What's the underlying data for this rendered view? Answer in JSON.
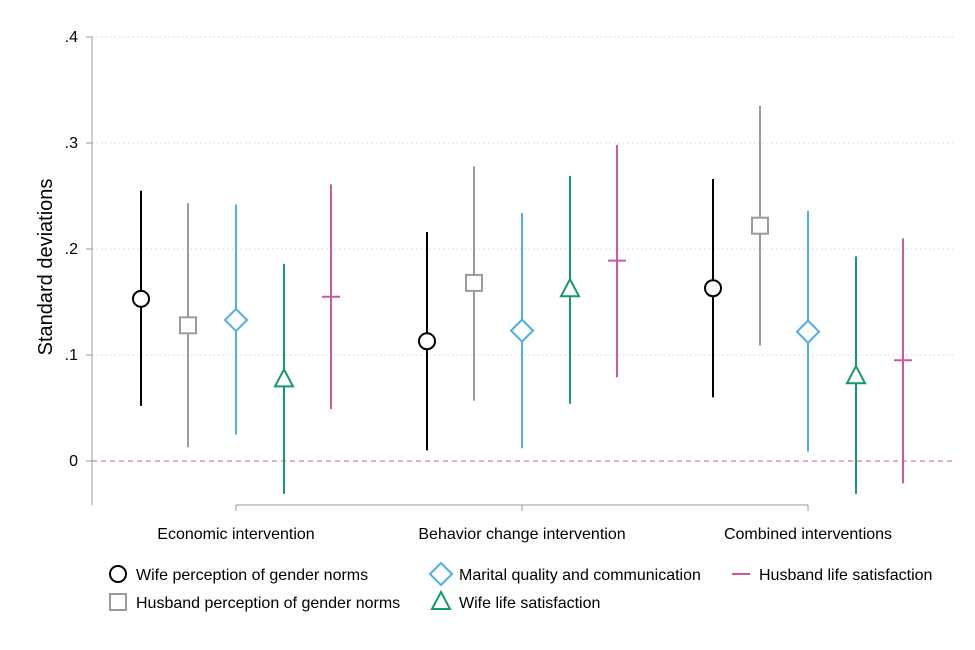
{
  "chart_data": {
    "type": "scatter",
    "subtype": "coefficient-plot-with-confidence-intervals",
    "ylabel": "Standard deviations",
    "ylim": [
      -0.03,
      0.4
    ],
    "y_ticks": [
      {
        "value": 0,
        "label": "0"
      },
      {
        "value": 0.1,
        "label": ".1"
      },
      {
        "value": 0.2,
        "label": ".2"
      },
      {
        "value": 0.3,
        "label": ".3"
      },
      {
        "value": 0.4,
        "label": ".4"
      }
    ],
    "grid": "horizontal dotted",
    "reference_line": {
      "y": 0,
      "style": "dashed",
      "color": "#c75b9b"
    },
    "categories": [
      "Economic intervention",
      "Behavior change intervention",
      "Combined interventions"
    ],
    "series": [
      {
        "name": "Wife perception of gender norms",
        "marker": "circle",
        "color": "#000000",
        "estimates": [
          0.153,
          0.113,
          0.163
        ],
        "ci_low": [
          0.052,
          0.01,
          0.06
        ],
        "ci_high": [
          0.255,
          0.216,
          0.266
        ]
      },
      {
        "name": "Husband perception of gender norms",
        "marker": "square",
        "color": "#9b9b9b",
        "estimates": [
          0.128,
          0.168,
          0.222
        ],
        "ci_low": [
          0.013,
          0.057,
          0.109
        ],
        "ci_high": [
          0.243,
          0.278,
          0.335
        ]
      },
      {
        "name": "Marital quality and communication",
        "marker": "diamond",
        "color": "#4faee3",
        "estimates": [
          0.133,
          0.123,
          0.122
        ],
        "ci_low": [
          0.025,
          0.012,
          0.009
        ],
        "ci_high": [
          0.242,
          0.234,
          0.236
        ]
      },
      {
        "name": "Wife life satisfaction",
        "marker": "triangle",
        "color": "#14996e",
        "estimates": [
          0.077,
          0.162,
          0.08
        ],
        "ci_low": [
          -0.031,
          0.054,
          -0.031
        ],
        "ci_high": [
          0.186,
          0.269,
          0.193
        ]
      },
      {
        "name": "Husband life satisfaction",
        "marker": "plus",
        "color": "#c75b9b",
        "estimates": [
          0.155,
          0.189,
          0.095
        ],
        "ci_low": [
          0.049,
          0.079,
          -0.021
        ],
        "ci_high": [
          0.261,
          0.298,
          0.21
        ]
      }
    ],
    "legend": {
      "placement": "bottom",
      "columns": 3
    }
  }
}
